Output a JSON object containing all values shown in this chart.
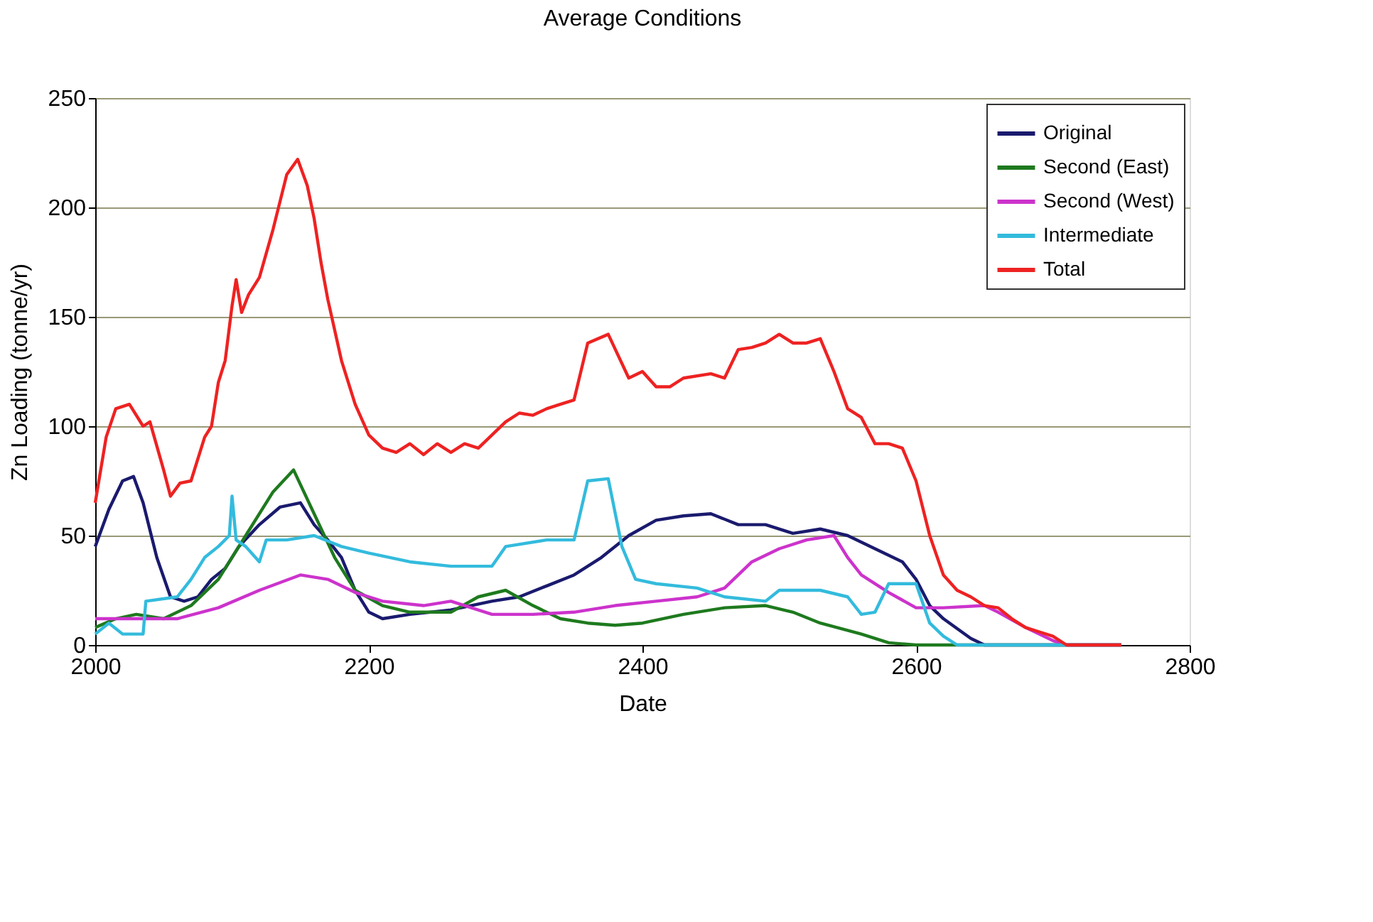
{
  "chart_data": {
    "type": "line",
    "title": "Average Conditions",
    "xlabel": "Date",
    "ylabel": "Zn Loading (tonne/yr)",
    "xlim": [
      2000,
      2800
    ],
    "xticks": [
      2000,
      2200,
      2400,
      2600,
      2800
    ],
    "ylim": [
      0,
      250
    ],
    "yticks": [
      0,
      50,
      100,
      150,
      200,
      250
    ],
    "grid": "y",
    "legend": "top right",
    "marker": "none",
    "line_style": "solid",
    "series": [
      {
        "name": "Original",
        "color": "#1a1a6e",
        "x": [
          2000,
          2010,
          2020,
          2028,
          2035,
          2045,
          2055,
          2065,
          2075,
          2085,
          2095,
          2105,
          2120,
          2135,
          2150,
          2160,
          2170,
          2180,
          2190,
          2200,
          2210,
          2230,
          2260,
          2290,
          2310,
          2330,
          2350,
          2370,
          2390,
          2410,
          2430,
          2450,
          2470,
          2490,
          2510,
          2530,
          2550,
          2570,
          2590,
          2600,
          2610,
          2620,
          2640,
          2650,
          2750
        ],
        "values": [
          45,
          62,
          75,
          77,
          65,
          40,
          22,
          20,
          22,
          30,
          35,
          45,
          55,
          63,
          65,
          55,
          48,
          40,
          25,
          15,
          12,
          14,
          16,
          20,
          22,
          27,
          32,
          40,
          50,
          57,
          59,
          60,
          55,
          55,
          51,
          53,
          50,
          44,
          38,
          30,
          18,
          12,
          3,
          0,
          0
        ]
      },
      {
        "name": "Second (East)",
        "color": "#1e7a1e",
        "x": [
          2000,
          2015,
          2030,
          2050,
          2070,
          2090,
          2110,
          2130,
          2145,
          2160,
          2175,
          2190,
          2210,
          2230,
          2260,
          2280,
          2300,
          2320,
          2340,
          2360,
          2380,
          2400,
          2430,
          2460,
          2490,
          2510,
          2530,
          2560,
          2580,
          2600,
          2750
        ],
        "values": [
          8,
          12,
          14,
          12,
          18,
          30,
          50,
          70,
          80,
          60,
          40,
          25,
          18,
          15,
          15,
          22,
          25,
          18,
          12,
          10,
          9,
          10,
          14,
          17,
          18,
          15,
          10,
          5,
          1,
          0,
          0
        ]
      },
      {
        "name": "Second (West)",
        "color": "#cc33cc",
        "x": [
          2000,
          2030,
          2060,
          2090,
          2120,
          2150,
          2170,
          2190,
          2210,
          2240,
          2260,
          2290,
          2320,
          2350,
          2380,
          2410,
          2440,
          2460,
          2480,
          2500,
          2520,
          2540,
          2550,
          2560,
          2580,
          2600,
          2620,
          2650,
          2660,
          2680,
          2700,
          2710,
          2750
        ],
        "values": [
          12,
          12,
          12,
          17,
          25,
          32,
          30,
          24,
          20,
          18,
          20,
          14,
          14,
          15,
          18,
          20,
          22,
          26,
          38,
          44,
          48,
          50,
          40,
          32,
          24,
          17,
          17,
          18,
          15,
          8,
          2,
          0,
          0
        ]
      },
      {
        "name": "Intermediate",
        "color": "#33bbdd",
        "x": [
          2000,
          2010,
          2020,
          2035,
          2037,
          2060,
          2070,
          2080,
          2090,
          2098,
          2100,
          2103,
          2110,
          2120,
          2125,
          2140,
          2160,
          2180,
          2200,
          2230,
          2260,
          2290,
          2300,
          2330,
          2350,
          2360,
          2375,
          2385,
          2395,
          2410,
          2440,
          2460,
          2490,
          2500,
          2530,
          2550,
          2560,
          2570,
          2580,
          2600,
          2610,
          2620,
          2630,
          2750
        ],
        "values": [
          5,
          10,
          5,
          5,
          20,
          22,
          30,
          40,
          45,
          50,
          68,
          48,
          45,
          38,
          48,
          48,
          50,
          45,
          42,
          38,
          36,
          36,
          45,
          48,
          48,
          75,
          76,
          45,
          30,
          28,
          26,
          22,
          20,
          25,
          25,
          22,
          14,
          15,
          28,
          28,
          10,
          4,
          0,
          0
        ]
      },
      {
        "name": "Total",
        "color": "#ee2222",
        "x": [
          2000,
          2008,
          2015,
          2025,
          2035,
          2040,
          2050,
          2055,
          2062,
          2070,
          2080,
          2085,
          2090,
          2095,
          2100,
          2103,
          2107,
          2112,
          2120,
          2130,
          2140,
          2148,
          2155,
          2160,
          2165,
          2170,
          2180,
          2190,
          2200,
          2210,
          2220,
          2230,
          2240,
          2250,
          2260,
          2270,
          2280,
          2290,
          2300,
          2310,
          2320,
          2330,
          2340,
          2350,
          2360,
          2375,
          2390,
          2400,
          2410,
          2420,
          2430,
          2450,
          2460,
          2470,
          2480,
          2490,
          2500,
          2510,
          2520,
          2530,
          2540,
          2550,
          2560,
          2570,
          2580,
          2590,
          2600,
          2610,
          2620,
          2630,
          2640,
          2650,
          2660,
          2670,
          2680,
          2690,
          2700,
          2710,
          2750
        ],
        "values": [
          65,
          95,
          108,
          110,
          100,
          102,
          80,
          68,
          74,
          75,
          95,
          100,
          120,
          130,
          155,
          167,
          152,
          160,
          168,
          190,
          215,
          222,
          210,
          195,
          175,
          158,
          130,
          110,
          96,
          90,
          88,
          92,
          87,
          92,
          88,
          92,
          90,
          96,
          102,
          106,
          105,
          108,
          110,
          112,
          138,
          142,
          122,
          125,
          118,
          118,
          122,
          124,
          122,
          135,
          136,
          138,
          142,
          138,
          138,
          140,
          125,
          108,
          104,
          92,
          92,
          90,
          75,
          50,
          32,
          25,
          22,
          18,
          17,
          12,
          8,
          6,
          4,
          0,
          0
        ]
      }
    ]
  }
}
